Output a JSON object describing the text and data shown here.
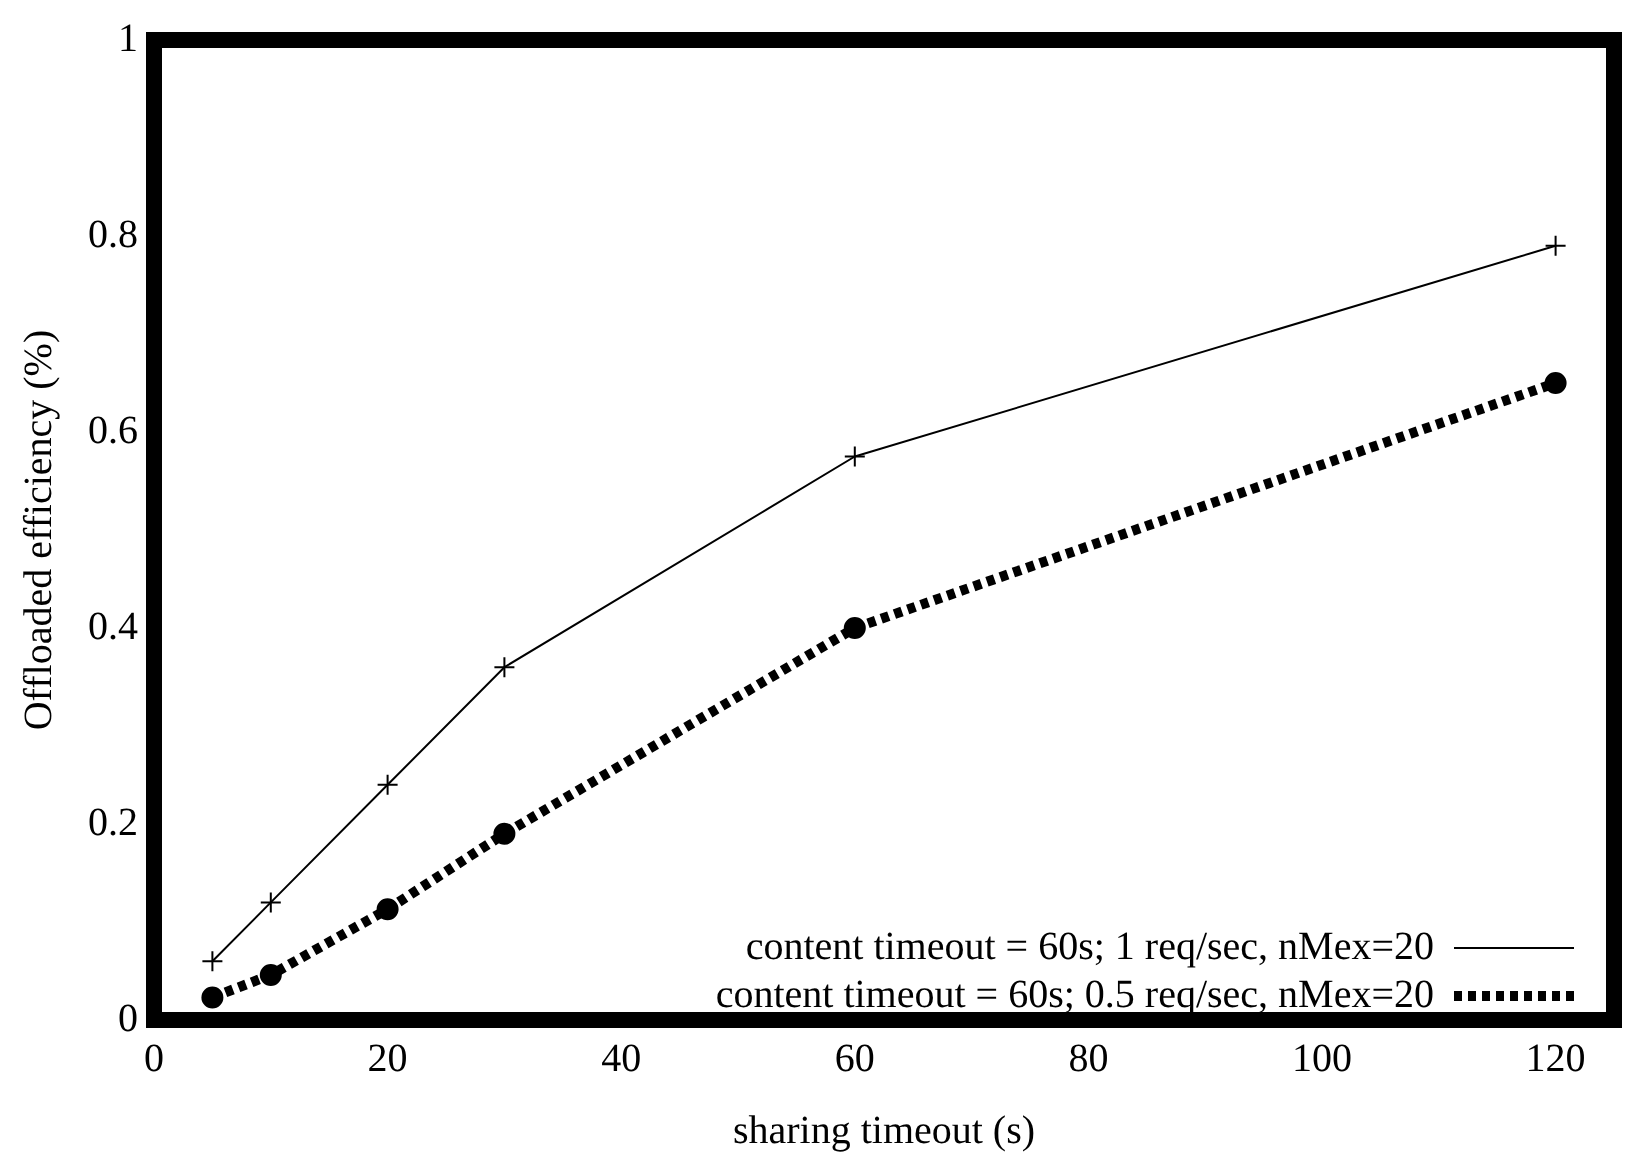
{
  "chart_data": {
    "type": "line",
    "xlabel": "sharing timeout (s)",
    "ylabel": "Offloaded efficiency (%)",
    "x": [
      5,
      10,
      20,
      30,
      60,
      120
    ],
    "series": [
      {
        "name": "content timeout = 60s; 1 req/sec, nMex=20",
        "color": "#000000",
        "values": [
          0.06,
          0.12,
          0.24,
          0.36,
          0.575,
          0.79
        ],
        "marker": "cross",
        "line_style": "solid"
      },
      {
        "name": "content timeout = 60s; 0.5 req/sec, nMex=20",
        "color": "#000000",
        "values": [
          0.023,
          0.046,
          0.113,
          0.19,
          0.4,
          0.65
        ],
        "marker": "circle",
        "line_style": "dotted"
      }
    ],
    "xlim": [
      0,
      125
    ],
    "xticks": [
      0,
      20,
      40,
      60,
      80,
      100,
      120
    ],
    "ylim": [
      0,
      1
    ],
    "yticks": [
      0,
      0.2,
      0.4,
      0.6,
      0.8,
      1
    ],
    "grid": false,
    "legend": "bottom right"
  }
}
